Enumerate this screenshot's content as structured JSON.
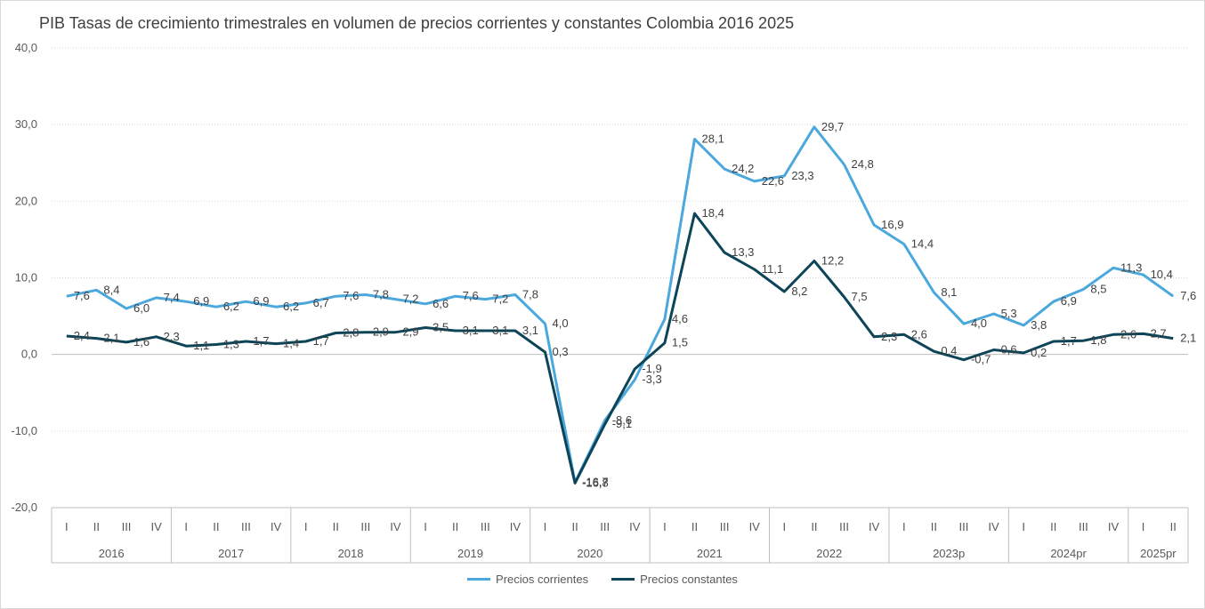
{
  "chart_data": {
    "type": "line",
    "title": "PIB Tasas de crecimiento trimestrales en volumen de precios corrientes y constantes Colombia 2016 2025",
    "ylim": [
      -20,
      40
    ],
    "yticks": [
      "-20,0",
      "-10,0",
      "0,0",
      "10,0",
      "20,0",
      "30,0",
      "40,0"
    ],
    "ytick_values": [
      -20,
      -10,
      0,
      10,
      20,
      30,
      40
    ],
    "grid": true,
    "legend_position": "bottom",
    "quarters": [
      "I",
      "II",
      "III",
      "IV",
      "I",
      "II",
      "III",
      "IV",
      "I",
      "II",
      "III",
      "IV",
      "I",
      "II",
      "III",
      "IV",
      "I",
      "II",
      "III",
      "IV",
      "I",
      "II",
      "III",
      "IV",
      "I",
      "II",
      "III",
      "IV",
      "I",
      "II",
      "III",
      "IV",
      "I",
      "II",
      "III",
      "IV",
      "I",
      "II"
    ],
    "years": [
      {
        "label": "2016",
        "count": 4
      },
      {
        "label": "2017",
        "count": 4
      },
      {
        "label": "2018",
        "count": 4
      },
      {
        "label": "2019",
        "count": 4
      },
      {
        "label": "2020",
        "count": 4
      },
      {
        "label": "2021",
        "count": 4
      },
      {
        "label": "2022",
        "count": 4
      },
      {
        "label": "2023p",
        "count": 4
      },
      {
        "label": "2024pr",
        "count": 4
      },
      {
        "label": "2025pr",
        "count": 2
      }
    ],
    "series": [
      {
        "name": "Precios corrientes",
        "color": "#4aa8dd",
        "values": [
          7.6,
          8.4,
          6.0,
          7.4,
          6.9,
          6.2,
          6.9,
          6.2,
          6.7,
          7.6,
          7.8,
          7.2,
          6.6,
          7.6,
          7.2,
          7.8,
          4.0,
          -16.7,
          -8.6,
          -3.3,
          4.6,
          28.1,
          24.2,
          22.6,
          23.3,
          29.7,
          24.8,
          16.9,
          14.4,
          8.1,
          4.0,
          5.3,
          3.8,
          6.9,
          8.5,
          11.3,
          10.4,
          7.6
        ],
        "labels": [
          "7,6",
          "8,4",
          "6,0",
          "7,4",
          "6,9",
          "6,2",
          "6,9",
          "6,2",
          "6,7",
          "7,6",
          "7,8",
          "7,2",
          "6,6",
          "7,6",
          "7,2",
          "7,8",
          "4,0",
          "-16,7",
          "-8,6",
          "-3,3",
          "4,6",
          "28,1",
          "24,2",
          "22,6",
          "23,3",
          "29,7",
          "24,8",
          "16,9",
          "14,4",
          "8,1",
          "4,0",
          "5,3",
          "3,8",
          "6,9",
          "8,5",
          "11,3",
          "10,4",
          "7,6"
        ]
      },
      {
        "name": "Precios constantes",
        "color": "#0d4457",
        "values": [
          2.4,
          2.1,
          1.6,
          2.3,
          1.1,
          1.3,
          1.7,
          1.4,
          1.7,
          2.8,
          2.9,
          2.9,
          3.5,
          3.1,
          3.1,
          3.1,
          0.3,
          -16.8,
          -9.1,
          -1.9,
          1.5,
          18.4,
          13.3,
          11.1,
          8.2,
          12.2,
          7.5,
          2.3,
          2.6,
          0.4,
          -0.7,
          0.6,
          0.2,
          1.7,
          1.8,
          2.6,
          2.7,
          2.1
        ],
        "labels": [
          "2,4",
          "2,1",
          "1,6",
          "2,3",
          "1,1",
          "1,3",
          "1,7",
          "1,4",
          "1,7",
          "2,8",
          "2,9",
          "2,9",
          "3,5",
          "3,1",
          "3,1",
          "3,1",
          "0,3",
          "-16,8",
          "-9,1",
          "-1,9",
          "1,5",
          "18,4",
          "13,3",
          "11,1",
          "8,2",
          "12,2",
          "7,5",
          "2,3",
          "2,6",
          "0,4",
          "-0,7",
          "0,6",
          "0,2",
          "1,7",
          "1,8",
          "2,6",
          "2,7",
          "2,1"
        ]
      }
    ]
  }
}
